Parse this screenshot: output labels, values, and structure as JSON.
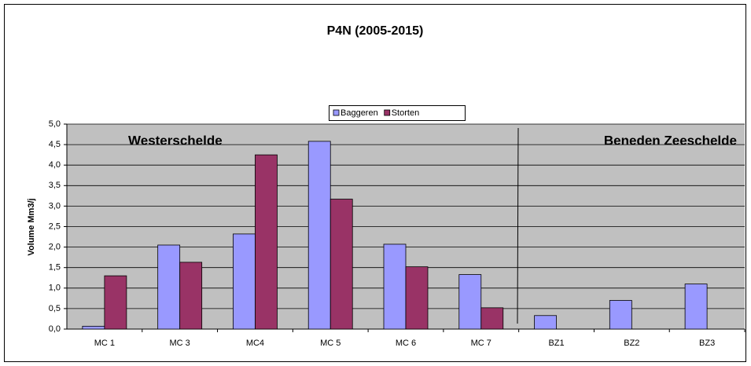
{
  "chart_data": {
    "type": "bar",
    "title": "P4N (2005-2015)",
    "y_label": "Volume Mm3/j",
    "annotations": [
      "Westerschelde",
      "Beneden Zeeschelde"
    ],
    "categories": [
      "MC 1",
      "MC 3",
      "MC4",
      "MC 5",
      "MC 6",
      "MC 7",
      "BZ1",
      "BZ2",
      "BZ3"
    ],
    "series": [
      {
        "name": "Baggeren",
        "color": "#9999ff",
        "values": [
          0.07,
          2.05,
          2.32,
          4.58,
          2.07,
          1.33,
          0.33,
          0.7,
          1.1
        ]
      },
      {
        "name": "Storten",
        "color": "#993366",
        "values": [
          1.3,
          1.63,
          4.25,
          3.17,
          1.52,
          0.52,
          null,
          null,
          null
        ]
      }
    ],
    "ylim": [
      0,
      5
    ],
    "yticks": [
      {
        "value": 0,
        "label": "0,0"
      },
      {
        "value": 0.5,
        "label": "0,5"
      },
      {
        "value": 1,
        "label": "1,0"
      },
      {
        "value": 1.5,
        "label": "1,5"
      },
      {
        "value": 2,
        "label": "2,0"
      },
      {
        "value": 2.5,
        "label": "2,5"
      },
      {
        "value": 3,
        "label": "3,0"
      },
      {
        "value": 3.5,
        "label": "3,5"
      },
      {
        "value": 4,
        "label": "4,0"
      },
      {
        "value": 4.5,
        "label": "4,5"
      },
      {
        "value": 5,
        "label": "5,0"
      }
    ],
    "grid": true,
    "legend": "top"
  }
}
